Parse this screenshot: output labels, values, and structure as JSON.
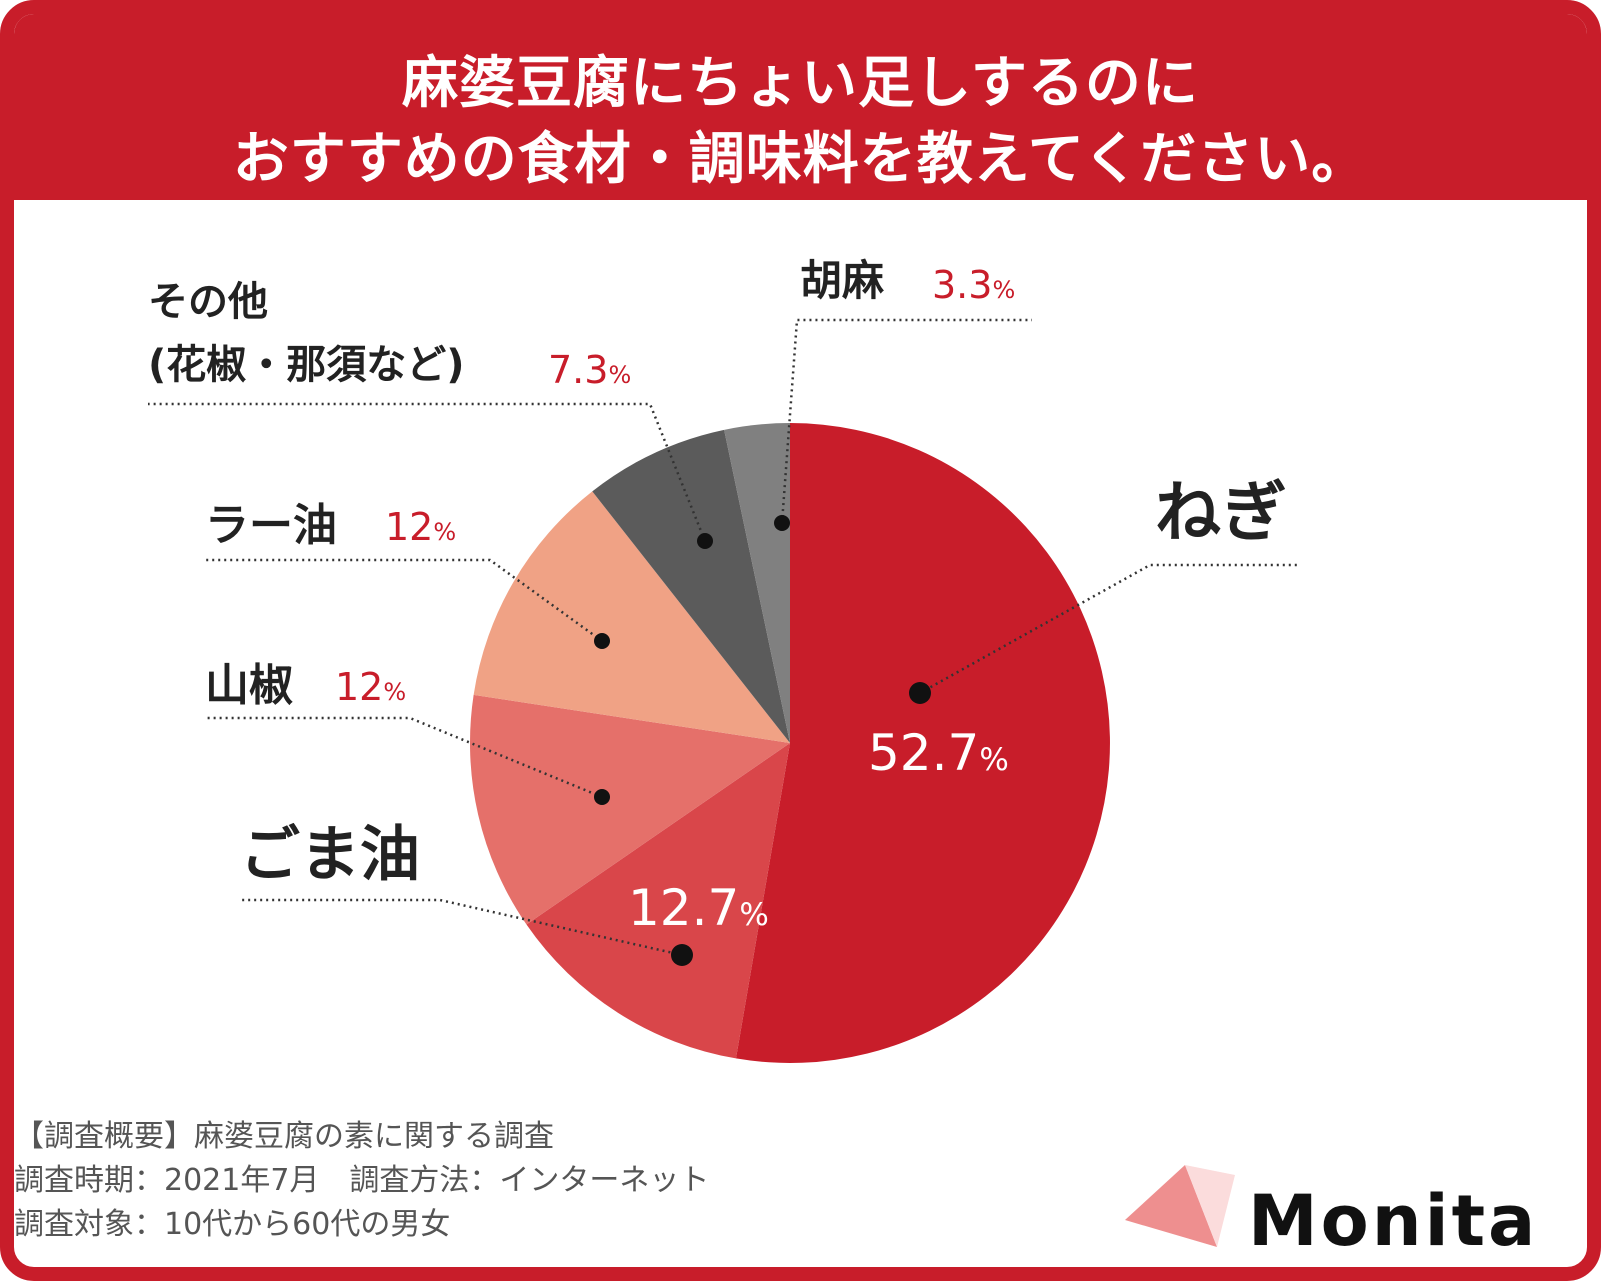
{
  "title_lines": [
    "麻婆豆腐にちょい足しするのに",
    "おすすめの食材・調味料を教えてください。"
  ],
  "chart_data": {
    "type": "pie",
    "title": "麻婆豆腐にちょい足しするのにおすすめの食材・調味料を教えてください。",
    "slices": [
      {
        "label": "ねぎ",
        "value": 52.7,
        "value_text": "52.7",
        "color": "#c81d2a"
      },
      {
        "label": "ごま油",
        "value": 12.7,
        "value_text": "12.7",
        "color": "#d9464a"
      },
      {
        "label": "山椒",
        "value": 12,
        "value_text": "12",
        "color": "#e5706a"
      },
      {
        "label": "ラー油",
        "value": 12,
        "value_text": "12",
        "color": "#f0a285"
      },
      {
        "label": "その他",
        "sublabel": "(花椒・那須など)",
        "value": 7.3,
        "value_text": "7.3",
        "color": "#5b5b5b"
      },
      {
        "label": "胡麻",
        "value": 3.3,
        "value_text": "3.3",
        "color": "#808080"
      }
    ],
    "unit": "%"
  },
  "footer": [
    "【調査概要】麻婆豆腐の素に関する調査",
    "調査時期：2021年7月　調査方法：インターネット",
    "調査対象：10代から60代の男女"
  ],
  "brand": {
    "name": "Monita",
    "colors": {
      "primary": "#c81d2a",
      "logo_light": "#ee8f8f",
      "logo_pale": "#fbdcdc"
    }
  }
}
